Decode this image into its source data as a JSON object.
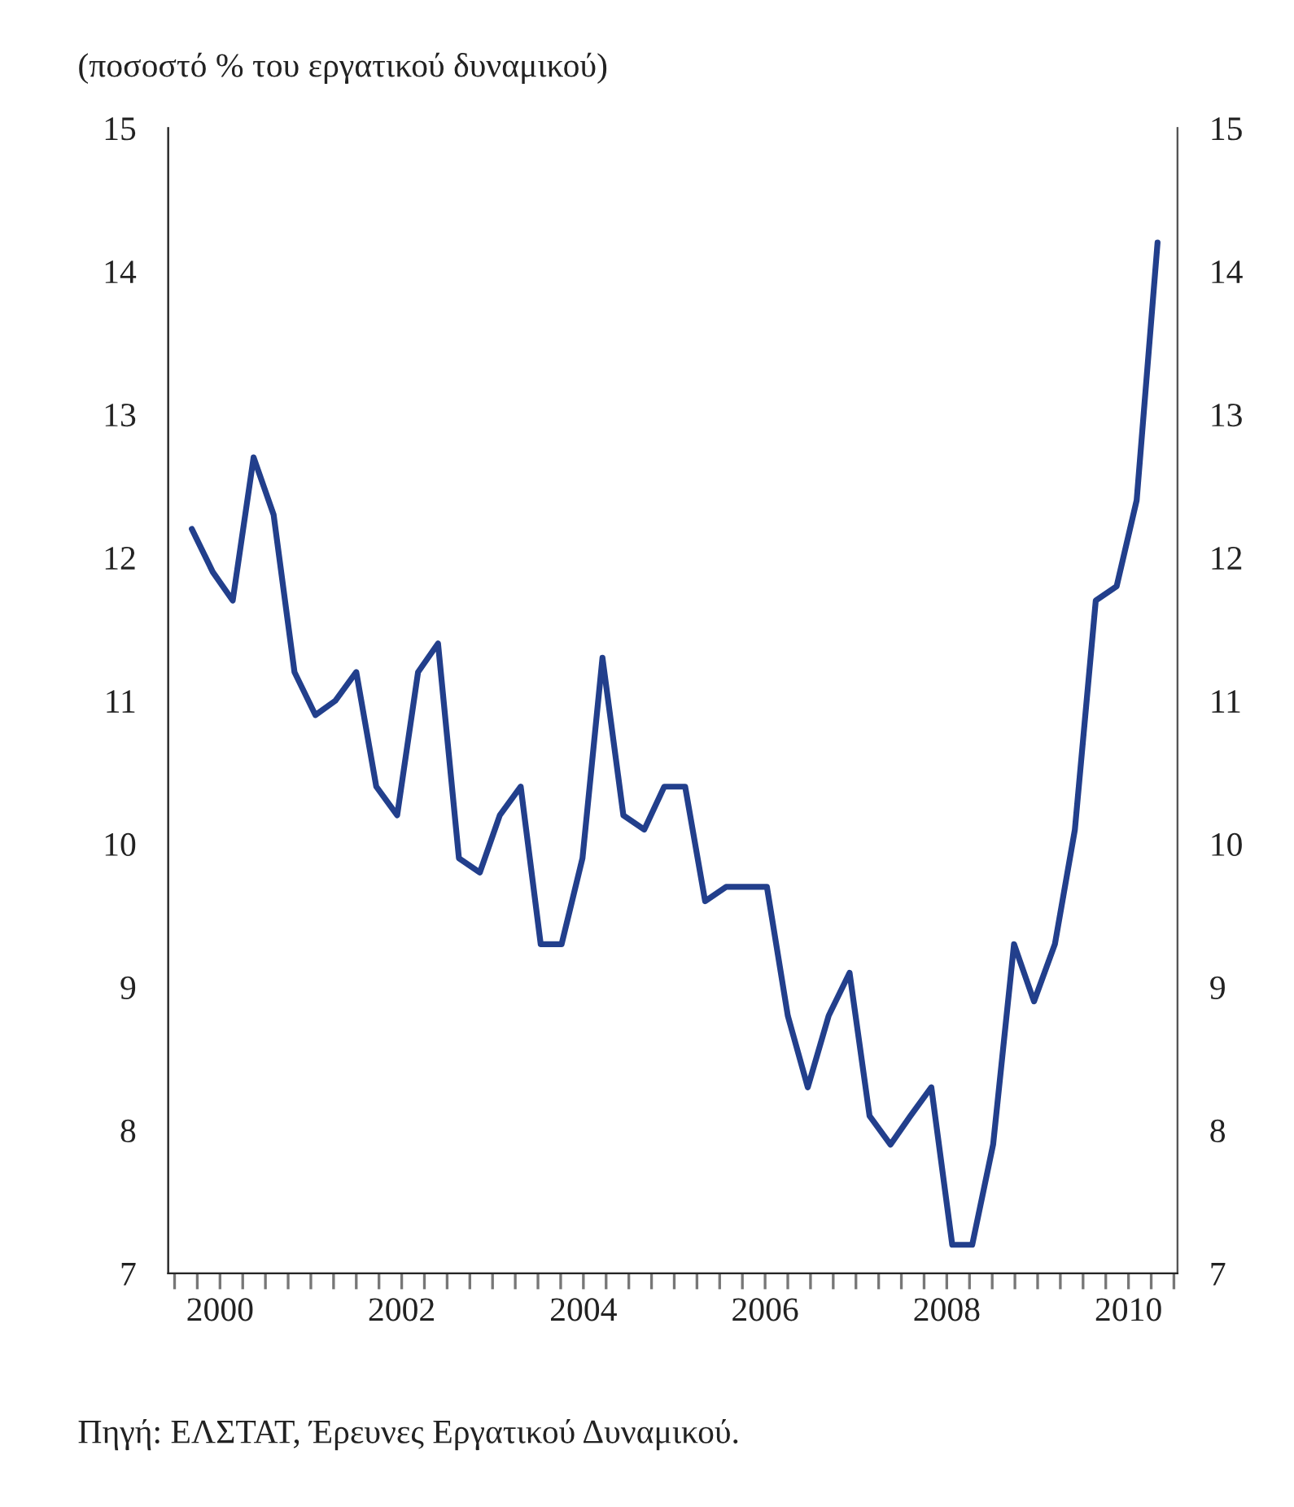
{
  "chart_data": {
    "type": "line",
    "subtitle": "(ποσοστό % του εργατικού δυναμικού)",
    "annotations": [
      "Πηγή: ΕΛΣΤΑΤ, Έρευνες Εργατικού Δυναμικού."
    ],
    "x": [
      1999.69,
      1999.92,
      2000.14,
      2000.37,
      2000.59,
      2000.82,
      2001.05,
      2001.27,
      2001.5,
      2001.72,
      2001.95,
      2002.18,
      2002.4,
      2002.63,
      2002.86,
      2003.08,
      2003.31,
      2003.53,
      2003.76,
      2003.99,
      2004.21,
      2004.44,
      2004.67,
      2004.89,
      2005.12,
      2005.34,
      2005.57,
      2005.8,
      2006.02,
      2006.25,
      2006.47,
      2006.7,
      2006.93,
      2007.15,
      2007.38,
      2007.6,
      2007.83,
      2008.06,
      2008.28,
      2008.51,
      2008.74,
      2008.96,
      2009.19,
      2009.41,
      2009.64,
      2009.87,
      2010.09,
      2010.32
    ],
    "series": [
      {
        "color": "#223f8c",
        "values": [
          12.2,
          11.9,
          11.7,
          12.7,
          12.3,
          11.2,
          10.9,
          11.0,
          11.2,
          10.4,
          10.2,
          11.2,
          11.4,
          9.9,
          9.8,
          10.2,
          10.4,
          9.3,
          9.3,
          9.9,
          11.3,
          10.2,
          10.1,
          10.4,
          10.4,
          9.6,
          9.7,
          9.7,
          9.7,
          8.8,
          8.3,
          8.8,
          9.1,
          8.1,
          7.9,
          8.1,
          8.3,
          7.2,
          7.2,
          7.9,
          9.3,
          8.9,
          9.3,
          10.1,
          11.7,
          11.8,
          12.4,
          14.2
        ]
      }
    ],
    "xlim": [
      1999.43,
      2010.54
    ],
    "xticks": [
      {
        "value": 1999.5,
        "label": null
      },
      {
        "value": 1999.75,
        "label": null
      },
      {
        "value": 2000,
        "label": "2000"
      },
      {
        "value": 2000.25,
        "label": null
      },
      {
        "value": 2000.5,
        "label": null
      },
      {
        "value": 2000.75,
        "label": null
      },
      {
        "value": 2001,
        "label": null
      },
      {
        "value": 2001.25,
        "label": null
      },
      {
        "value": 2001.5,
        "label": null
      },
      {
        "value": 2001.75,
        "label": null
      },
      {
        "value": 2002,
        "label": "2002"
      },
      {
        "value": 2002.25,
        "label": null
      },
      {
        "value": 2002.5,
        "label": null
      },
      {
        "value": 2002.75,
        "label": null
      },
      {
        "value": 2003,
        "label": null
      },
      {
        "value": 2003.25,
        "label": null
      },
      {
        "value": 2003.5,
        "label": null
      },
      {
        "value": 2003.75,
        "label": null
      },
      {
        "value": 2004,
        "label": "2004"
      },
      {
        "value": 2004.25,
        "label": null
      },
      {
        "value": 2004.5,
        "label": null
      },
      {
        "value": 2004.75,
        "label": null
      },
      {
        "value": 2005,
        "label": null
      },
      {
        "value": 2005.25,
        "label": null
      },
      {
        "value": 2005.5,
        "label": null
      },
      {
        "value": 2005.75,
        "label": null
      },
      {
        "value": 2006,
        "label": "2006"
      },
      {
        "value": 2006.25,
        "label": null
      },
      {
        "value": 2006.5,
        "label": null
      },
      {
        "value": 2006.75,
        "label": null
      },
      {
        "value": 2007,
        "label": null
      },
      {
        "value": 2007.25,
        "label": null
      },
      {
        "value": 2007.5,
        "label": null
      },
      {
        "value": 2007.75,
        "label": null
      },
      {
        "value": 2008,
        "label": "2008"
      },
      {
        "value": 2008.25,
        "label": null
      },
      {
        "value": 2008.5,
        "label": null
      },
      {
        "value": 2008.75,
        "label": null
      },
      {
        "value": 2009,
        "label": null
      },
      {
        "value": 2009.25,
        "label": null
      },
      {
        "value": 2009.5,
        "label": null
      },
      {
        "value": 2009.75,
        "label": null
      },
      {
        "value": 2010,
        "label": "2010"
      },
      {
        "value": 2010.25,
        "label": null
      },
      {
        "value": 2010.5,
        "label": null
      }
    ],
    "ylim": [
      7,
      15
    ],
    "yticks": [
      7,
      8,
      9,
      10,
      11,
      12,
      13,
      14,
      15
    ],
    "y2lim": [
      7,
      15
    ],
    "y2ticks": [
      7,
      8,
      9,
      10,
      11,
      12,
      13,
      14,
      15
    ],
    "line_style": "solid"
  }
}
